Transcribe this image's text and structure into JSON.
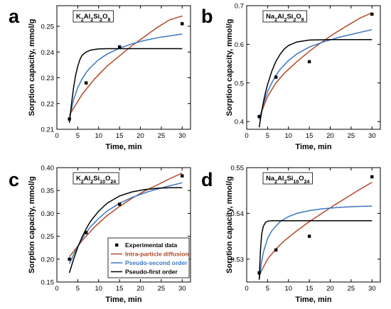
{
  "legend": {
    "entries": [
      {
        "label": "Experimental data",
        "kind": "marker",
        "color": "#000000"
      },
      {
        "label": "Intra-particle diffusion",
        "kind": "line",
        "color": "#b24a2a"
      },
      {
        "label": "Pseudo-second order",
        "kind": "line",
        "color": "#3b78c4"
      },
      {
        "label": "Pseudo-first order",
        "kind": "line",
        "color": "#000000"
      }
    ]
  },
  "chart_data": [
    {
      "type": "line",
      "panel": "a",
      "compound": {
        "parts": [
          "K",
          "2",
          "Al",
          "2",
          "Si",
          "2",
          "O",
          "8"
        ]
      },
      "xlabel": "Time, min",
      "ylabel": "Sorption capacity, mmol/g",
      "xlim": [
        0,
        32
      ],
      "ylim": [
        0.21,
        0.258
      ],
      "xticks": [
        0,
        5,
        10,
        15,
        20,
        25,
        30
      ],
      "yticks": [
        0.21,
        0.22,
        0.23,
        0.24,
        0.25
      ],
      "ytick_labels": [
        "0.21",
        "0.22",
        "0.23",
        "0.24",
        "0.25"
      ],
      "experimental": {
        "x": [
          3,
          7,
          15,
          30
        ],
        "y": [
          0.214,
          0.228,
          0.242,
          0.251
        ]
      },
      "series": [
        {
          "name": "Intra-particle diffusion",
          "color": "#b24a2a",
          "x": [
            3,
            6,
            9,
            12,
            15,
            18,
            21,
            24,
            27,
            30
          ],
          "y": [
            0.2155,
            0.2235,
            0.2295,
            0.2345,
            0.2385,
            0.2425,
            0.246,
            0.2495,
            0.2525,
            0.254
          ]
        },
        {
          "name": "Pseudo-second order",
          "color": "#3b78c4",
          "x": [
            3,
            4,
            5,
            6,
            7,
            8,
            10,
            12,
            15,
            18,
            21,
            25,
            30
          ],
          "y": [
            0.214,
            0.2215,
            0.2262,
            0.2295,
            0.232,
            0.234,
            0.237,
            0.2392,
            0.2415,
            0.2432,
            0.2445,
            0.2458,
            0.247
          ]
        },
        {
          "name": "Pseudo-first order",
          "color": "#000000",
          "x": [
            3,
            3.5,
            4,
            4.5,
            5,
            5.5,
            6,
            7,
            8,
            9,
            10,
            12,
            15,
            20,
            25,
            30
          ],
          "y": [
            0.2125,
            0.22,
            0.2262,
            0.231,
            0.2345,
            0.237,
            0.2387,
            0.24,
            0.2407,
            0.241,
            0.2412,
            0.2413,
            0.2413,
            0.2413,
            0.2413,
            0.2413
          ]
        }
      ]
    },
    {
      "type": "line",
      "panel": "b",
      "compound": {
        "parts": [
          "Na",
          "2",
          "Al",
          "2",
          "Si",
          "2",
          "O",
          "8"
        ]
      },
      "xlabel": "Time, min",
      "ylabel": "Sorption capacity, mmol/g",
      "xlim": [
        0,
        32
      ],
      "ylim": [
        0.38,
        0.7
      ],
      "xticks": [
        0,
        5,
        10,
        15,
        20,
        25,
        30
      ],
      "yticks": [
        0.4,
        0.5,
        0.6,
        0.7
      ],
      "ytick_labels": [
        "0.4",
        "0.5",
        "0.6",
        "0.7"
      ],
      "experimental": {
        "x": [
          3,
          7,
          15,
          30
        ],
        "y": [
          0.413,
          0.515,
          0.555,
          0.678
        ]
      },
      "series": [
        {
          "name": "Intra-particle diffusion",
          "color": "#b24a2a",
          "x": [
            3,
            5,
            7,
            9,
            12,
            15,
            18,
            21,
            24,
            27,
            30
          ],
          "y": [
            0.41,
            0.465,
            0.5,
            0.525,
            0.555,
            0.582,
            0.606,
            0.628,
            0.648,
            0.667,
            0.682
          ]
        },
        {
          "name": "Pseudo-second order",
          "color": "#3b78c4",
          "x": [
            3,
            4,
            5,
            6,
            7,
            8,
            10,
            12,
            15,
            18,
            22,
            26,
            30
          ],
          "y": [
            0.405,
            0.445,
            0.478,
            0.5,
            0.52,
            0.535,
            0.558,
            0.575,
            0.593,
            0.605,
            0.618,
            0.628,
            0.638
          ]
        },
        {
          "name": "Pseudo-first order",
          "color": "#000000",
          "x": [
            3,
            3.5,
            4,
            4.5,
            5,
            6,
            7,
            8,
            9,
            10,
            12,
            15,
            20,
            25,
            30
          ],
          "y": [
            0.385,
            0.42,
            0.45,
            0.475,
            0.496,
            0.53,
            0.556,
            0.574,
            0.588,
            0.597,
            0.606,
            0.611,
            0.612,
            0.612,
            0.612
          ]
        }
      ]
    },
    {
      "type": "line",
      "panel": "c",
      "compound": {
        "parts": [
          "K",
          "2",
          "Al",
          "2",
          "Si",
          "10",
          "O",
          "24"
        ]
      },
      "xlabel": "Time, min",
      "ylabel": "Sorption capacity, mmol/g",
      "xlim": [
        0,
        32
      ],
      "ylim": [
        0.15,
        0.4
      ],
      "xticks": [
        0,
        5,
        10,
        15,
        20,
        25,
        30
      ],
      "yticks": [
        0.15,
        0.2,
        0.25,
        0.3,
        0.35,
        0.4
      ],
      "ytick_labels": [
        "0.15",
        "0.20",
        "0.25",
        "0.30",
        "0.35",
        "0.40"
      ],
      "experimental": {
        "x": [
          3,
          7,
          15,
          30
        ],
        "y": [
          0.2,
          0.258,
          0.32,
          0.382
        ]
      },
      "series": [
        {
          "name": "Intra-particle diffusion",
          "color": "#b24a2a",
          "x": [
            3,
            6,
            9,
            12,
            15,
            18,
            21,
            24,
            27,
            30
          ],
          "y": [
            0.205,
            0.24,
            0.27,
            0.295,
            0.315,
            0.333,
            0.349,
            0.362,
            0.376,
            0.388
          ]
        },
        {
          "name": "Pseudo-second order",
          "color": "#3b78c4",
          "x": [
            3,
            4,
            5,
            6,
            7,
            8,
            10,
            12,
            15,
            18,
            22,
            26,
            30
          ],
          "y": [
            0.19,
            0.21,
            0.228,
            0.244,
            0.258,
            0.27,
            0.289,
            0.305,
            0.322,
            0.335,
            0.348,
            0.358,
            0.367
          ]
        },
        {
          "name": "Pseudo-first order",
          "color": "#000000",
          "x": [
            3,
            4,
            5,
            6,
            7,
            8,
            10,
            12,
            15,
            18,
            21,
            24,
            27,
            30
          ],
          "y": [
            0.17,
            0.2,
            0.226,
            0.248,
            0.266,
            0.282,
            0.305,
            0.322,
            0.338,
            0.347,
            0.352,
            0.355,
            0.356,
            0.356
          ]
        }
      ]
    },
    {
      "type": "line",
      "panel": "d",
      "compound": {
        "parts": [
          "Na",
          "2",
          "Al",
          "2",
          "Si",
          "10",
          "O",
          "24"
        ]
      },
      "xlabel": "Time, min",
      "ylabel": "Sorption capacity, mmol/g",
      "xlim": [
        0,
        32
      ],
      "ylim": [
        0.525,
        0.55
      ],
      "xticks": [
        0,
        5,
        10,
        15,
        20,
        25,
        30
      ],
      "yticks": [
        0.53,
        0.54,
        0.55
      ],
      "ytick_labels": [
        "0.53",
        "0.54",
        "0.55"
      ],
      "experimental": {
        "x": [
          3,
          7,
          15,
          30
        ],
        "y": [
          0.527,
          0.532,
          0.535,
          0.548
        ]
      },
      "series": [
        {
          "name": "Intra-particle diffusion",
          "color": "#b24a2a",
          "x": [
            3,
            5,
            7,
            9,
            12,
            15,
            18,
            21,
            24,
            27,
            30
          ],
          "y": [
            0.5265,
            0.53,
            0.5322,
            0.534,
            0.5362,
            0.5382,
            0.54,
            0.5418,
            0.5435,
            0.5452,
            0.5468
          ]
        },
        {
          "name": "Pseudo-second order",
          "color": "#3b78c4",
          "x": [
            3,
            3.5,
            4,
            5,
            6,
            8,
            10,
            12,
            15,
            18,
            22,
            26,
            30
          ],
          "y": [
            0.5255,
            0.529,
            0.5315,
            0.5345,
            0.5362,
            0.5382,
            0.5393,
            0.54,
            0.5406,
            0.541,
            0.5413,
            0.5415,
            0.5416
          ]
        },
        {
          "name": "Pseudo-first order",
          "color": "#000000",
          "x": [
            3,
            3.3,
            3.6,
            4,
            4.5,
            5,
            6,
            7,
            8,
            10,
            15,
            20,
            25,
            30
          ],
          "y": [
            0.5255,
            0.532,
            0.5355,
            0.5372,
            0.538,
            0.5383,
            0.5384,
            0.5384,
            0.5384,
            0.5384,
            0.5384,
            0.5384,
            0.5384,
            0.5384
          ]
        }
      ]
    }
  ]
}
